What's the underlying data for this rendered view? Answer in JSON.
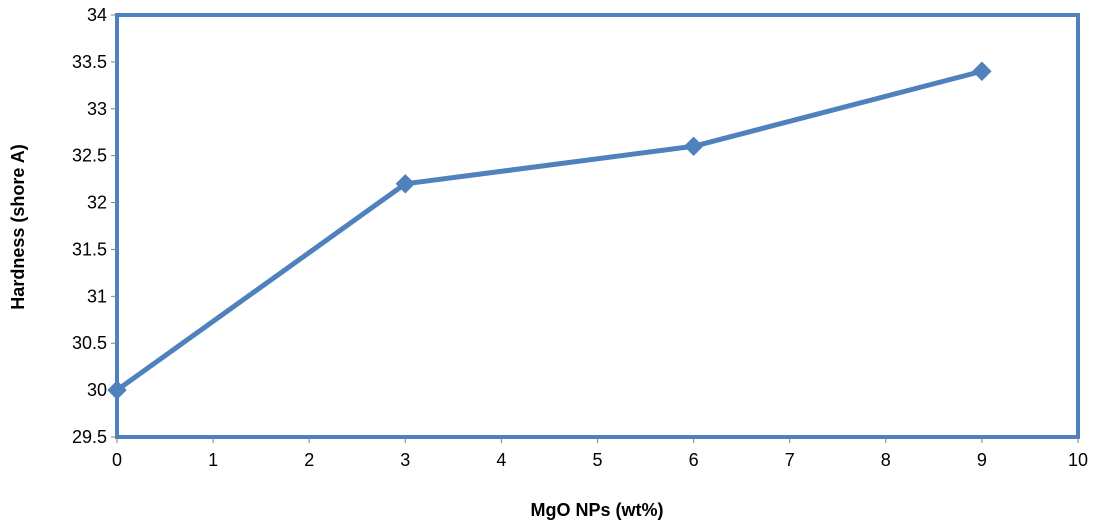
{
  "chart_data": {
    "type": "line",
    "title": "",
    "xlabel": "MgO NPs (wt%)",
    "ylabel": "Hardness (shore A)",
    "xlim": [
      0,
      10
    ],
    "ylim": [
      29.5,
      34
    ],
    "x_ticks": [
      "0",
      "1",
      "2",
      "3",
      "4",
      "5",
      "6",
      "7",
      "8",
      "9",
      "10"
    ],
    "y_ticks": [
      "29.5",
      "30",
      "30.5",
      "31",
      "31.5",
      "32",
      "32.5",
      "33",
      "33.5",
      "34"
    ],
    "grid": false,
    "legend": "none",
    "series": [
      {
        "x": [
          0,
          3,
          6,
          9
        ],
        "y": [
          30,
          32.2,
          32.6,
          33.4
        ],
        "color": "#4F81BD",
        "marker": "diamond"
      }
    ]
  }
}
